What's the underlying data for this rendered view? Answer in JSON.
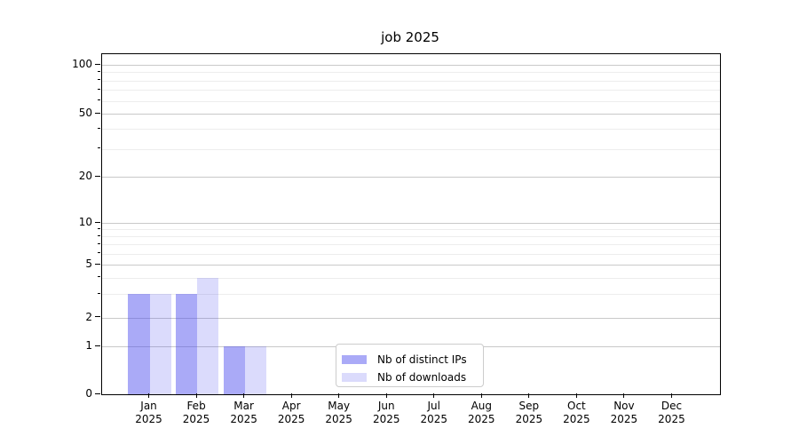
{
  "chart_data": {
    "type": "bar",
    "title": "job 2025",
    "categories": [
      "Jan",
      "Feb",
      "Mar",
      "Apr",
      "May",
      "Jun",
      "Jul",
      "Aug",
      "Sep",
      "Oct",
      "Nov",
      "Dec"
    ],
    "x_sublabel": "2025",
    "series": [
      {
        "name": "Nb of distinct IPs",
        "color": "rgba(75,75,238,0.47)",
        "values": [
          3,
          3,
          1,
          0,
          0,
          0,
          0,
          0,
          0,
          0,
          0,
          0
        ]
      },
      {
        "name": "Nb of downloads",
        "color": "rgba(75,75,238,0.20)",
        "values": [
          3,
          4,
          1,
          0,
          0,
          0,
          0,
          0,
          0,
          0,
          0,
          0
        ]
      }
    ],
    "yscale": "symlog",
    "yticks_major": [
      100,
      50,
      20,
      10,
      5,
      2,
      1,
      0
    ],
    "yticks_minor": [
      3,
      4,
      6,
      7,
      8,
      9,
      30,
      40,
      60,
      70,
      80,
      90
    ],
    "ylim": [
      0,
      115
    ],
    "grid": true,
    "legend_position": "lower-center"
  },
  "colors": {
    "grid_major": "#c9c9c9",
    "grid_minor": "#ededed",
    "spine": "#000000",
    "background": "#ffffff"
  }
}
